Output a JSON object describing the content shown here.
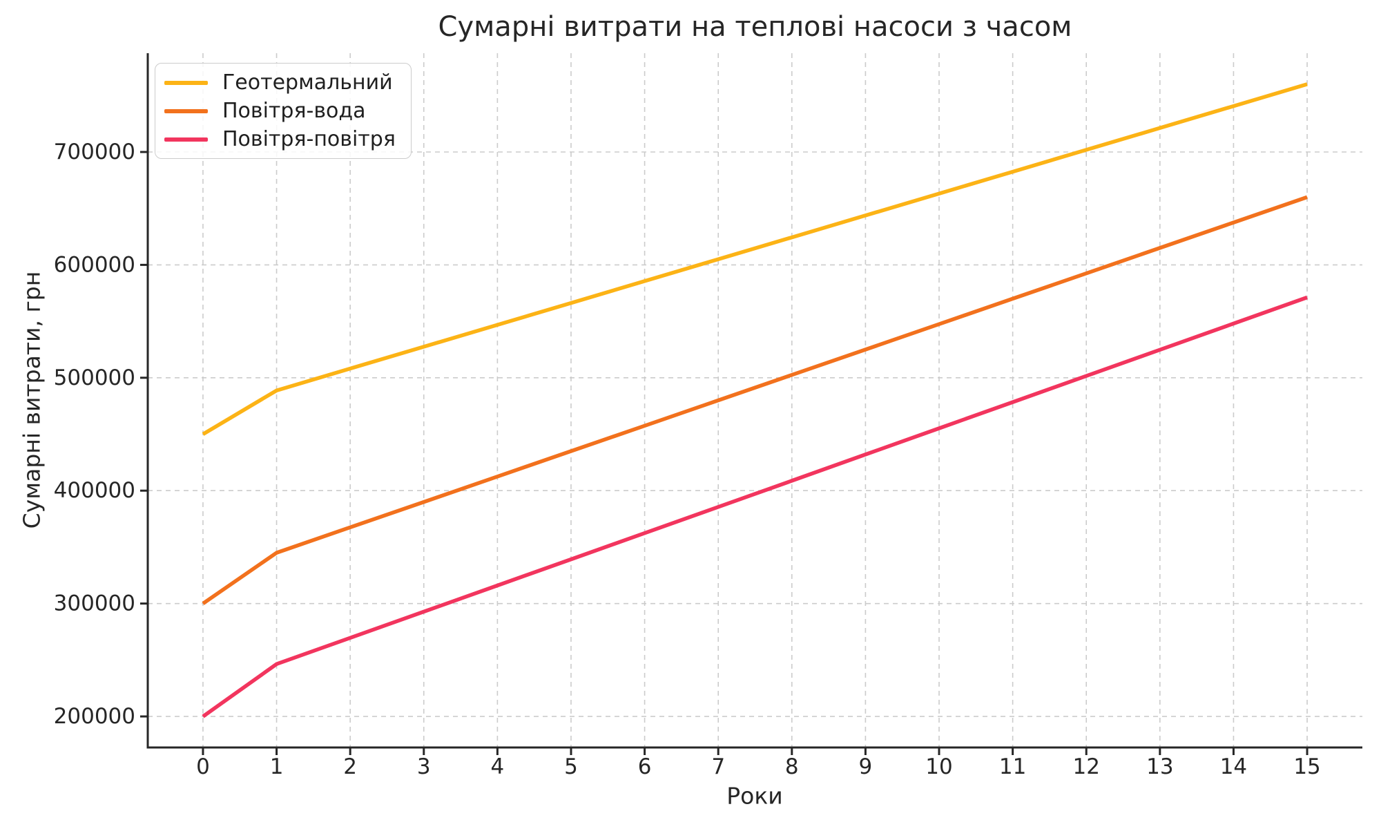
{
  "figure": {
    "title": "Сумарні витрати на теплові насоси з часом"
  },
  "chart_data": {
    "type": "line",
    "title": "Сумарні витрати на теплові насоси з часом",
    "xlabel": "Роки",
    "ylabel": "Сумарні витрати, грн",
    "x": [
      0,
      1,
      2,
      3,
      4,
      5,
      6,
      7,
      8,
      9,
      10,
      11,
      12,
      13,
      14,
      15
    ],
    "series": [
      {
        "name": "Геотермальний",
        "color": "#FCB316",
        "values": [
          450000,
          488750,
          508125,
          527500,
          546875,
          566250,
          585625,
          605000,
          624375,
          643750,
          663125,
          682500,
          701875,
          721250,
          740625,
          760000
        ]
      },
      {
        "name": "Повітря-вода",
        "color": "#F2711D",
        "values": [
          300000,
          345000,
          367500,
          390000,
          412500,
          435000,
          457500,
          480000,
          502500,
          525000,
          547500,
          570000,
          592500,
          615000,
          637500,
          660000
        ]
      },
      {
        "name": "Повітря-повітря",
        "color": "#F2355E",
        "values": [
          200000,
          246400,
          269600,
          292800,
          316000,
          339200,
          362400,
          385600,
          408800,
          432000,
          455200,
          478400,
          501600,
          524800,
          548000,
          571200
        ]
      }
    ],
    "xticks": [
      0,
      1,
      2,
      3,
      4,
      5,
      6,
      7,
      8,
      9,
      10,
      11,
      12,
      13,
      14,
      15
    ],
    "yticks": [
      200000,
      300000,
      400000,
      500000,
      600000,
      700000
    ],
    "xlim": [
      -0.75,
      15.75
    ],
    "ylim": [
      172500,
      787500
    ],
    "grid": true,
    "grid_style": "dashed",
    "legend_position": "upper left",
    "line_width": 5.5,
    "axis_color": "#262626",
    "grid_color": "#cbcbcb"
  }
}
